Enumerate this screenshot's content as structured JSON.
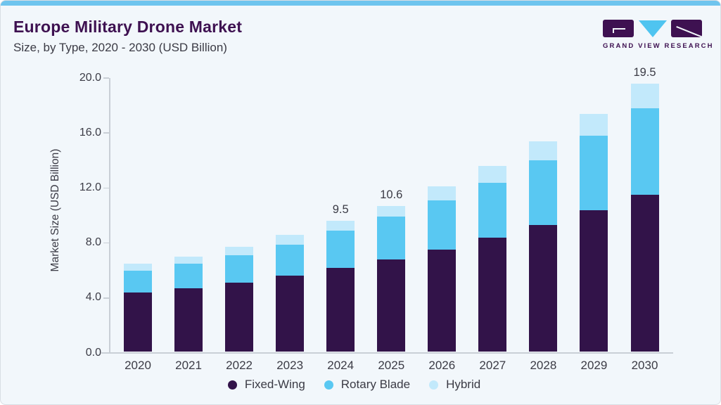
{
  "header": {
    "title": "Europe Military Drone Market",
    "subtitle": "Size, by Type, 2020 - 2030 (USD Billion)"
  },
  "logo": {
    "text": "GRAND VIEW RESEARCH",
    "brand_purple": "#3E1151",
    "brand_blue": "#4FC4F0"
  },
  "card": {
    "background": "#F2F7FB",
    "top_accent": "#6EC4EE",
    "border": "#D8DEE4",
    "text_color": "#3B3B45",
    "axis_color": "#C9CFD6"
  },
  "chart_data": {
    "type": "bar",
    "stacked": true,
    "title": "Europe Military Drone Market Size, by Type, 2020 - 2030 (USD Billion)",
    "xlabel": "",
    "ylabel": "Market Size (USD Billion)",
    "ylim": [
      0,
      20
    ],
    "yticks": [
      "0.0",
      "4.0",
      "8.0",
      "12.0",
      "16.0",
      "20.0"
    ],
    "grid": false,
    "legend_position": "bottom",
    "categories": [
      "2020",
      "2021",
      "2022",
      "2023",
      "2024",
      "2025",
      "2026",
      "2027",
      "2028",
      "2029",
      "2030"
    ],
    "series": [
      {
        "name": "Fixed-Wing",
        "color": "#321349",
        "values": [
          4.3,
          4.6,
          5.0,
          5.5,
          6.1,
          6.7,
          7.4,
          8.3,
          9.2,
          10.3,
          11.4
        ]
      },
      {
        "name": "Rotary Blade",
        "color": "#59C8F2",
        "values": [
          1.6,
          1.8,
          2.0,
          2.3,
          2.7,
          3.1,
          3.6,
          4.0,
          4.7,
          5.4,
          6.3
        ]
      },
      {
        "name": "Hybrid",
        "color": "#C2E9FB",
        "values": [
          0.5,
          0.5,
          0.6,
          0.7,
          0.7,
          0.8,
          1.0,
          1.2,
          1.4,
          1.6,
          1.8
        ]
      }
    ],
    "totals": [
      6.4,
      6.9,
      7.6,
      8.5,
      9.5,
      10.6,
      12.0,
      13.5,
      15.3,
      17.3,
      19.5
    ],
    "bar_labels": {
      "2024": "9.5",
      "2025": "10.6",
      "2030": "19.5"
    }
  }
}
